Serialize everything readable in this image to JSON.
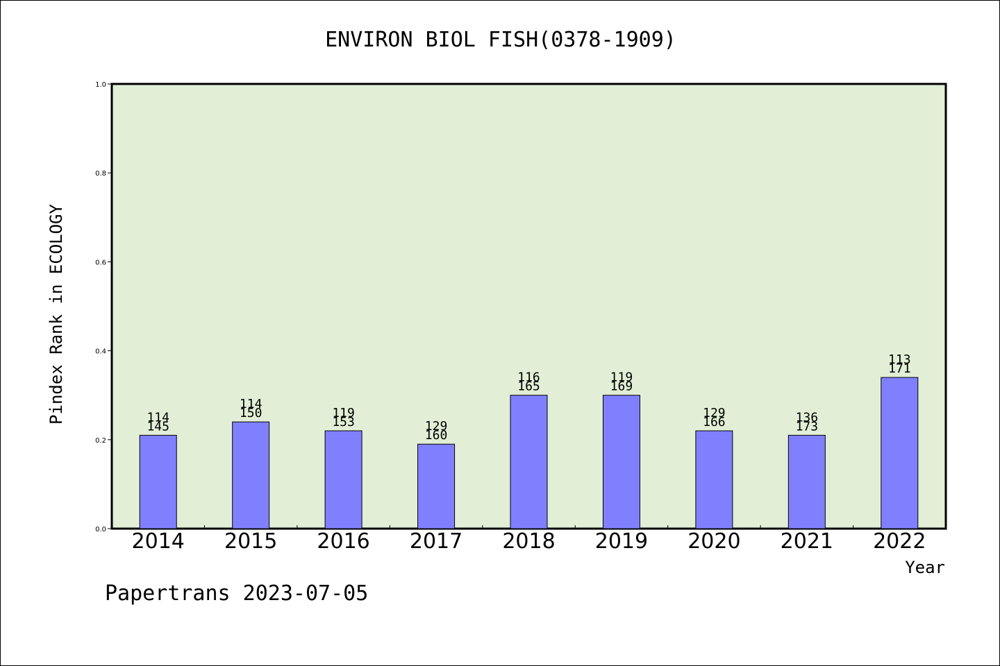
{
  "colors": {
    "plot_background": "#e2efd6",
    "bar_fill": "#8080ff",
    "bar_stroke": "#000000",
    "axis": "#000000"
  },
  "footer": "Papertrans 2023-07-05",
  "chart_data": {
    "type": "bar",
    "title": "ENVIRON BIOL FISH(0378-1909)",
    "xlabel": "Year",
    "ylabel": "Pindex Rank in ECOLOGY",
    "ylim": [
      0.0,
      1.0
    ],
    "yticks": [
      "0.0",
      "0.2",
      "0.4",
      "0.6",
      "0.8",
      "1.0"
    ],
    "grid": false,
    "categories": [
      "2014",
      "2015",
      "2016",
      "2017",
      "2018",
      "2019",
      "2020",
      "2021",
      "2022"
    ],
    "values": [
      0.21,
      0.24,
      0.22,
      0.19,
      0.3,
      0.3,
      0.22,
      0.21,
      0.34
    ],
    "rank_labels": [
      "114",
      "114",
      "119",
      "129",
      "116",
      "119",
      "129",
      "136",
      "113"
    ],
    "total_labels": [
      "145",
      "150",
      "153",
      "160",
      "165",
      "169",
      "166",
      "173",
      "171"
    ]
  }
}
